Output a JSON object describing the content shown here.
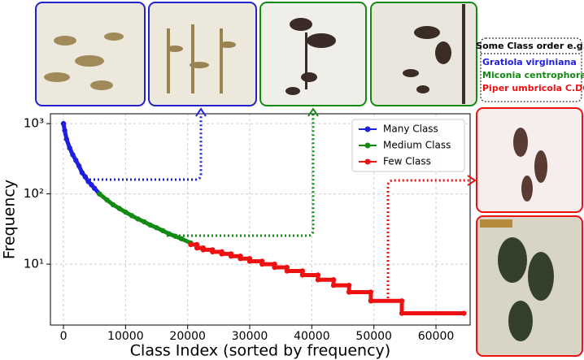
{
  "chart_data": {
    "type": "line",
    "xlabel": "Class Index (sorted by frequency)",
    "ylabel": "Frequency",
    "xlim": [
      -2100,
      65500
    ],
    "ylim": [
      1.36,
      1380
    ],
    "xticks": [
      0,
      10000,
      20000,
      30000,
      40000,
      50000,
      60000
    ],
    "yticks": [
      {
        "value": 10,
        "label": "10¹"
      },
      {
        "value": 100,
        "label": "10²"
      },
      {
        "value": 1000,
        "label": "10³"
      }
    ],
    "log_y": true,
    "grid": true,
    "legend": "upper right",
    "series": [
      {
        "name": "Many Class",
        "color": "#1f1fe0",
        "x": [
          0,
          200,
          500,
          1000,
          1500,
          2000,
          2500,
          3000,
          3500,
          4000,
          4500,
          5000,
          5800
        ],
        "values": [
          1000,
          800,
          600,
          450,
          360,
          300,
          250,
          200,
          175,
          150,
          135,
          120,
          100
        ]
      },
      {
        "name": "Medium Class",
        "color": "#138a13",
        "x": [
          5800,
          7000,
          8000,
          9000,
          10000,
          11000,
          12000,
          13000,
          14000,
          15000,
          16000,
          17000,
          18000,
          19000,
          20500
        ],
        "values": [
          100,
          82,
          70,
          62,
          55,
          49,
          44,
          40,
          36,
          33,
          30,
          27,
          25,
          23,
          20
        ]
      },
      {
        "name": "Few Class",
        "color": "#ee1111",
        "x": [
          20500,
          21500,
          21500,
          22500,
          22500,
          24000,
          24000,
          25500,
          25500,
          27000,
          27000,
          28500,
          28500,
          30000,
          30000,
          32000,
          32000,
          34000,
          34000,
          36000,
          36000,
          38500,
          38500,
          41000,
          41000,
          43500,
          43500,
          46000,
          46000,
          49500,
          49500,
          54500,
          54500,
          64500
        ],
        "values": [
          19,
          19,
          17,
          17,
          16,
          16,
          15,
          15,
          14,
          14,
          13,
          13,
          12,
          12,
          11,
          11,
          10,
          10,
          9,
          9,
          8,
          8,
          7,
          7,
          6,
          6,
          5,
          5,
          4,
          4,
          3,
          3,
          2,
          2
        ]
      }
    ],
    "annotations": {
      "heading": "Some Class order e.g.",
      "examples": [
        {
          "text": "Gratiola virginiana",
          "color": "#1f1fe0"
        },
        {
          "text": "Miconia centrophora",
          "color": "#138a13"
        },
        {
          "text": "Piper umbricola C.DC",
          "color": "#ee1111"
        }
      ]
    }
  }
}
